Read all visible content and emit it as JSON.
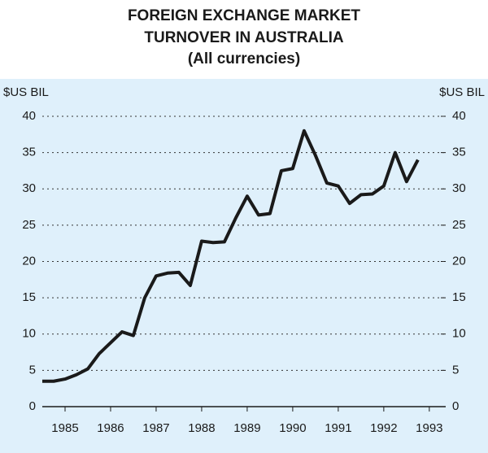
{
  "chart_data": {
    "type": "line",
    "title": "FOREIGN EXCHANGE MARKET",
    "title_line2": "TURNOVER IN AUSTRALIA",
    "subtitle": "(All currencies)",
    "y_label": "$US BIL",
    "y2_label": "$US BIL",
    "x": [
      1985,
      1985.25,
      1985.5,
      1985.75,
      1986,
      1986.25,
      1986.5,
      1986.75,
      1987,
      1987.25,
      1987.5,
      1987.75,
      1988,
      1988.25,
      1988.5,
      1988.75,
      1989,
      1989.25,
      1989.5,
      1989.75,
      1990,
      1990.25,
      1990.5,
      1990.75,
      1991,
      1991.25,
      1991.5,
      1991.75,
      1992,
      1992.25,
      1992.5,
      1992.75,
      1993,
      1993.25
    ],
    "series": [
      {
        "name": "Turnover",
        "color": "#1a1a1a",
        "values": [
          3.5,
          3.5,
          3.8,
          4.4,
          5.2,
          7.3,
          8.8,
          10.3,
          9.8,
          15,
          18,
          18.4,
          18.5,
          16.7,
          22.8,
          22.6,
          22.7,
          26,
          29,
          26.4,
          26.6,
          32.5,
          32.8,
          38,
          34.6,
          30.8,
          30.4,
          28,
          29.2,
          29.3,
          30.4,
          35,
          31,
          34
        ]
      }
    ],
    "xlim": [
      1985,
      1993.86
    ],
    "xticks": [
      {
        "value": 1985.5,
        "label": "1985"
      },
      {
        "value": 1986.5,
        "label": "1986"
      },
      {
        "value": 1987.5,
        "label": "1987"
      },
      {
        "value": 1988.5,
        "label": "1988"
      },
      {
        "value": 1989.5,
        "label": "1989"
      },
      {
        "value": 1990.5,
        "label": "1990"
      },
      {
        "value": 1991.5,
        "label": "1991"
      },
      {
        "value": 1992.5,
        "label": "1992"
      },
      {
        "value": 1993.5,
        "label": "1993"
      }
    ],
    "ylim": [
      0,
      40
    ],
    "yticks": [
      0,
      5,
      10,
      15,
      20,
      25,
      30,
      35,
      40
    ],
    "grid": true,
    "background": "#dff0fb"
  }
}
